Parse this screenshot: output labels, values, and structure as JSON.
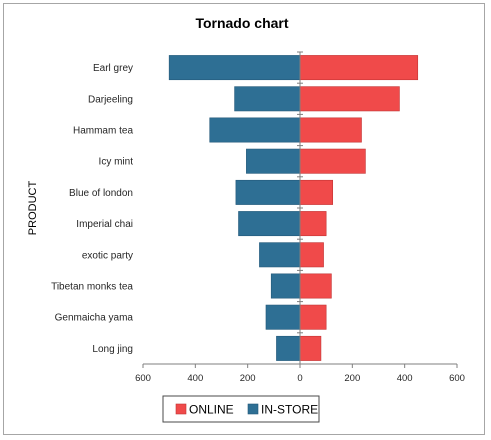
{
  "chart_data": {
    "type": "bar",
    "orientation": "horizontal",
    "title": "Tornado chart",
    "xlabel": "",
    "ylabel": "PRODUCT",
    "categories": [
      "Earl grey",
      "Darjeeling",
      "Hammam tea",
      "Icy mint",
      "Blue of london",
      "Imperial chai",
      "exotic party",
      "Tibetan monks tea",
      "Genmaicha yama",
      "Long jing"
    ],
    "series": [
      {
        "name": "ONLINE",
        "color": "#f04a4a",
        "values": [
          450,
          380,
          235,
          250,
          125,
          100,
          90,
          120,
          100,
          80
        ]
      },
      {
        "name": "IN-STORE",
        "color": "#2e6f94",
        "values": [
          500,
          250,
          345,
          205,
          245,
          235,
          155,
          110,
          130,
          90
        ]
      }
    ],
    "xlim": [
      -600,
      600
    ],
    "xticks": [
      -600,
      -400,
      -200,
      0,
      200,
      400,
      600
    ],
    "xtick_labels": [
      "600",
      "400",
      "200",
      "0",
      "200",
      "400",
      "600"
    ],
    "legend_position": "bottom",
    "grid": false
  }
}
